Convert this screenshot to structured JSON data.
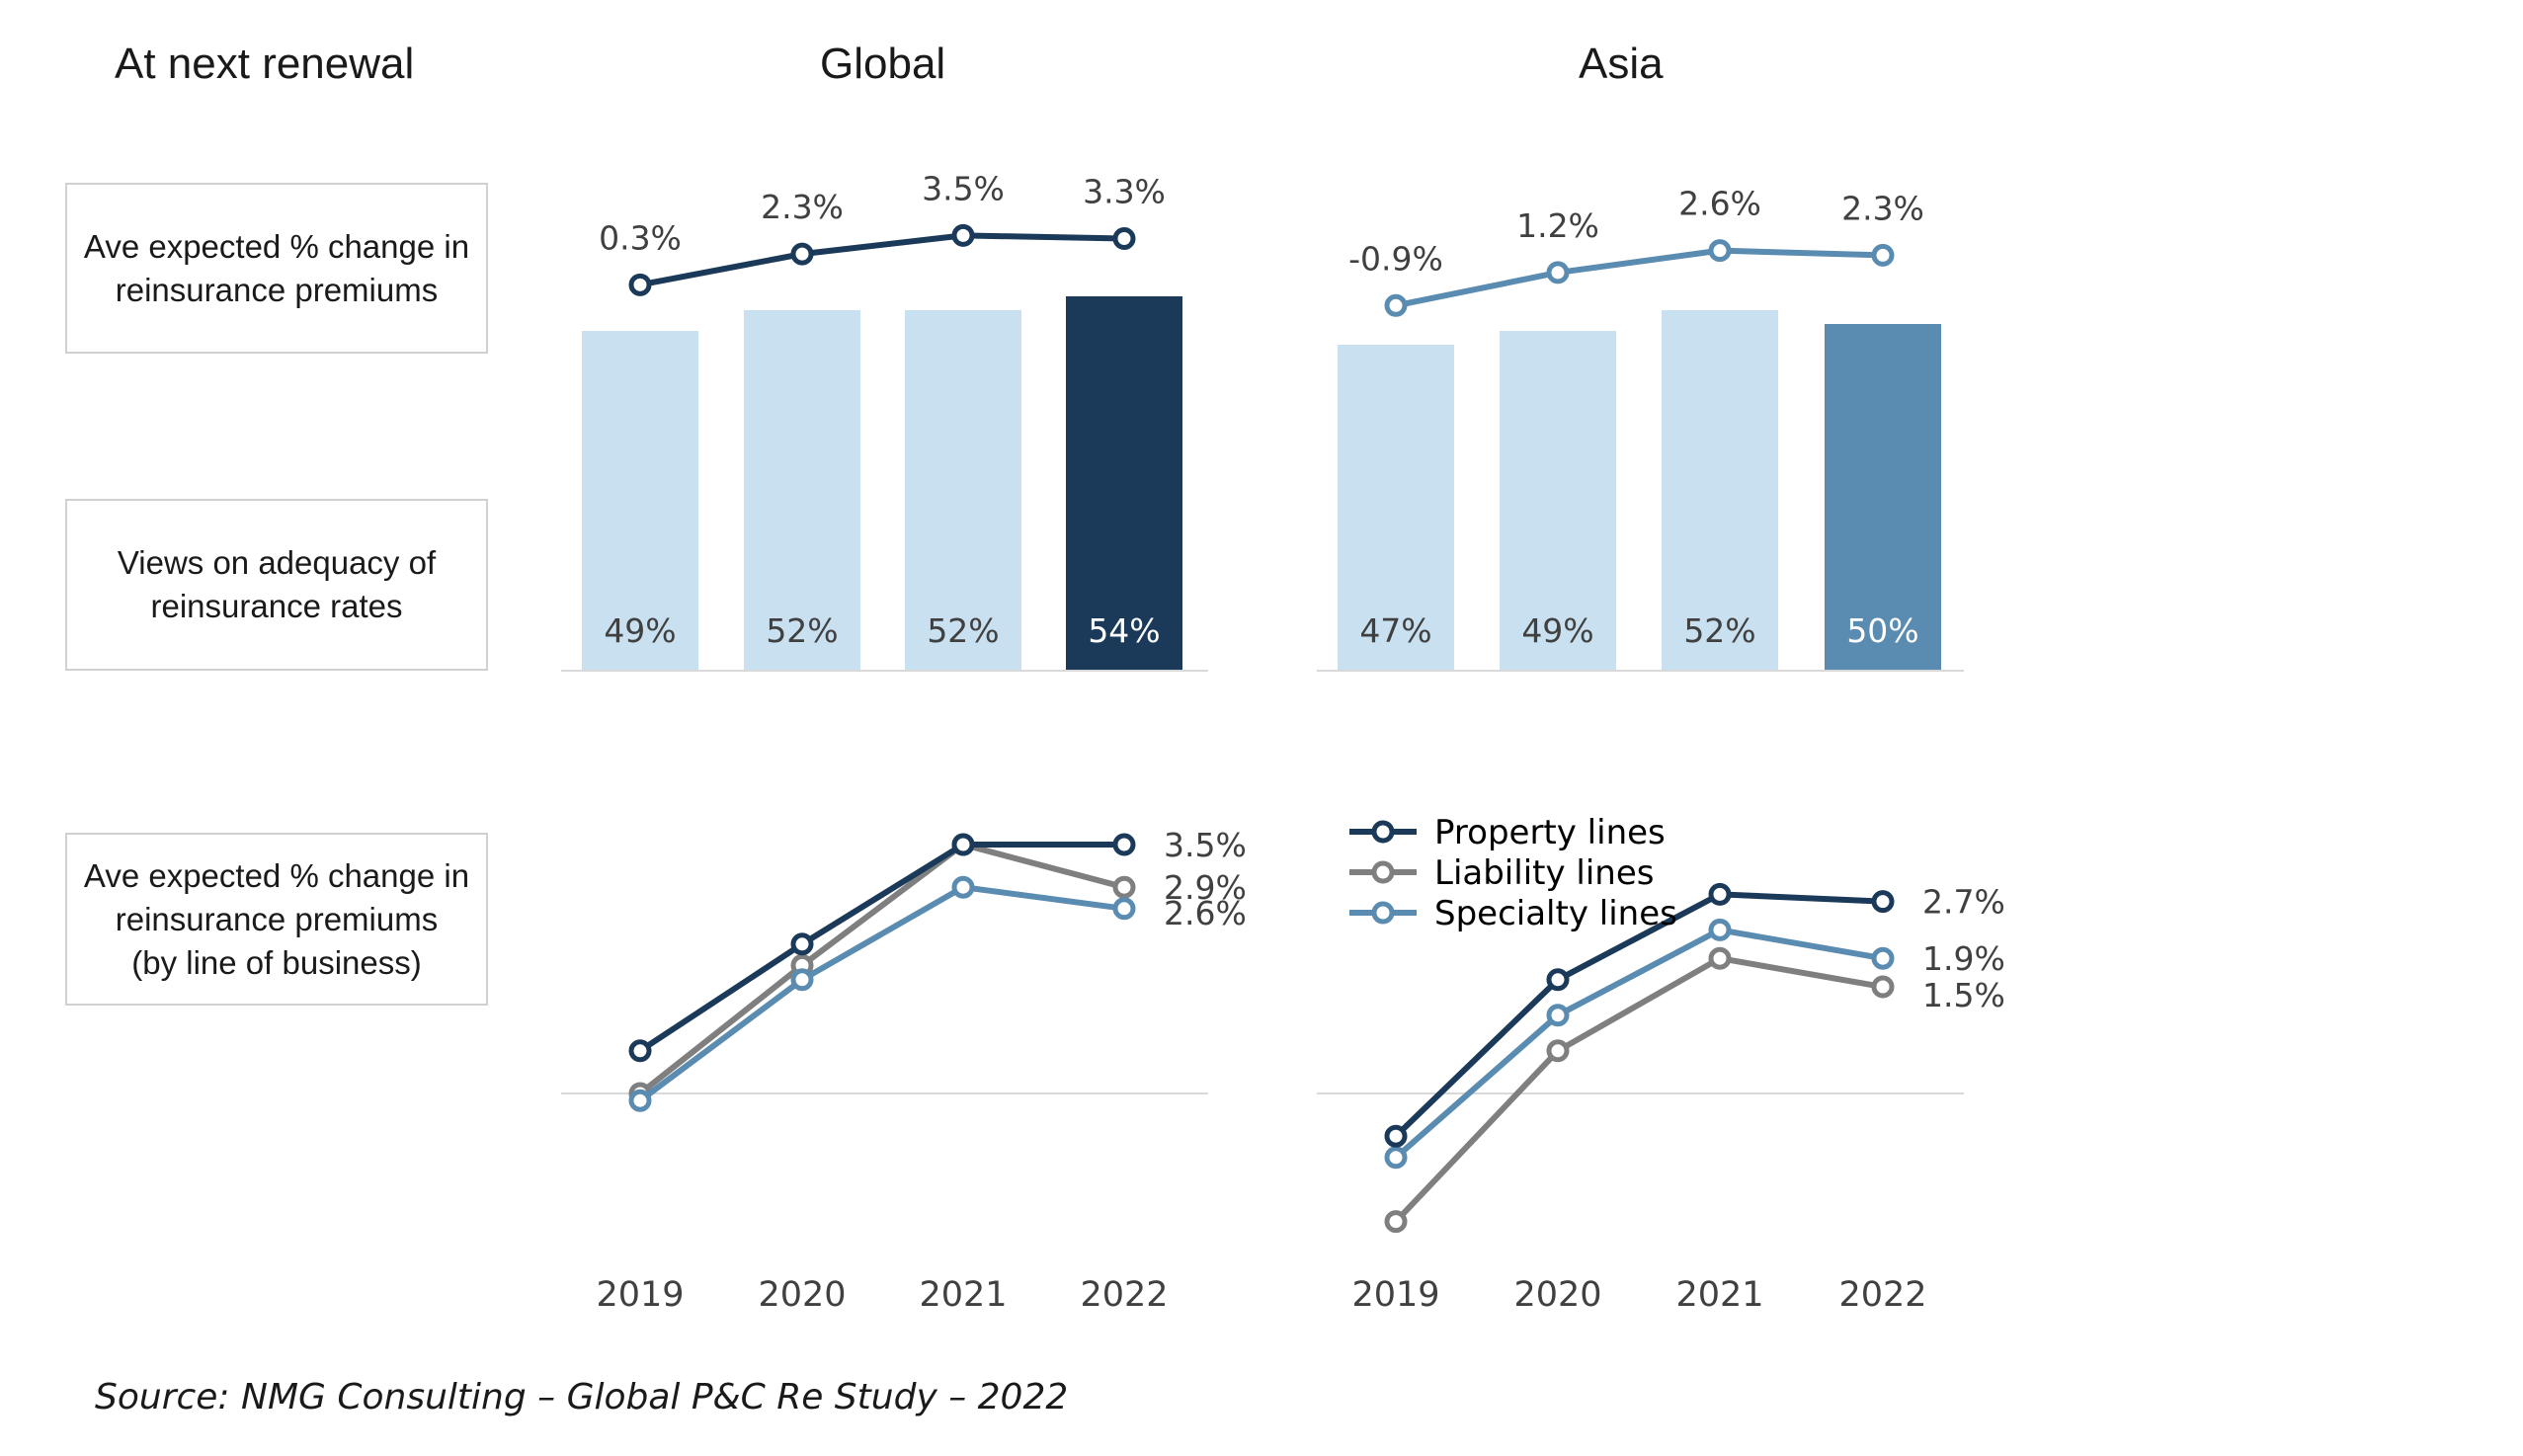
{
  "headers": {
    "left": "At next renewal",
    "global": "Global",
    "asia": "Asia"
  },
  "row_labels": {
    "premiums": [
      "Ave expected % change in",
      "reinsurance premiums"
    ],
    "adequacy": [
      "Views on adequacy of",
      "reinsurance rates"
    ],
    "by_line": [
      "Ave expected  % change in",
      "reinsurance premiums",
      "(by line of business)"
    ]
  },
  "source": "Source: NMG Consulting – Global P&C Re Study – 2022",
  "colors": {
    "navy": "#1b3a5a",
    "steel": "#5a8bb0",
    "gray": "#7f7f7f",
    "light_bar": "#c8e0ef",
    "axis": "#d9d9d9"
  },
  "chart_data": [
    {
      "id": "global-premiums",
      "type": "line",
      "panel": "Global",
      "categories": [
        "2019",
        "2020",
        "2021",
        "2022"
      ],
      "series": [
        {
          "color": "#1b3a5a",
          "values": [
            0.3,
            2.3,
            3.5,
            3.3
          ],
          "labels": [
            "0.3%",
            "2.3%",
            "3.5%",
            "3.3%"
          ]
        }
      ]
    },
    {
      "id": "asia-premiums",
      "type": "line",
      "panel": "Asia",
      "categories": [
        "2019",
        "2020",
        "2021",
        "2022"
      ],
      "series": [
        {
          "color": "#5a8bb0",
          "values": [
            -0.9,
            1.2,
            2.6,
            2.3
          ],
          "labels": [
            "-0.9%",
            "1.2%",
            "2.6%",
            "2.3%"
          ]
        }
      ]
    },
    {
      "id": "global-adequacy",
      "type": "bar",
      "panel": "Global",
      "categories": [
        "2019",
        "2020",
        "2021",
        "2022"
      ],
      "values": [
        49,
        52,
        52,
        54
      ],
      "labels": [
        "49%",
        "52%",
        "52%",
        "54%"
      ],
      "colors": [
        "#c8e0ef",
        "#c8e0ef",
        "#c8e0ef",
        "#1b3a5a"
      ]
    },
    {
      "id": "asia-adequacy",
      "type": "bar",
      "panel": "Asia",
      "categories": [
        "2019",
        "2020",
        "2021",
        "2022"
      ],
      "values": [
        47,
        49,
        52,
        50
      ],
      "labels": [
        "47%",
        "49%",
        "52%",
        "50%"
      ],
      "colors": [
        "#c8e0ef",
        "#c8e0ef",
        "#c8e0ef",
        "#5a8bb0"
      ]
    },
    {
      "id": "global-by-line",
      "type": "line",
      "panel": "Global",
      "categories": [
        "2019",
        "2020",
        "2021",
        "2022"
      ],
      "series": [
        {
          "name": "Property lines",
          "color": "#1b3a5a",
          "values": [
            0.6,
            2.1,
            3.5,
            3.5
          ],
          "end_label": "3.5%"
        },
        {
          "name": "Liability lines",
          "color": "#7f7f7f",
          "values": [
            0.0,
            1.8,
            3.5,
            2.9
          ],
          "end_label": "2.9%"
        },
        {
          "name": "Specialty lines",
          "color": "#5a8bb0",
          "values": [
            -0.1,
            1.6,
            2.9,
            2.6
          ],
          "end_label": "2.6%"
        }
      ]
    },
    {
      "id": "asia-by-line",
      "type": "line",
      "panel": "Asia",
      "categories": [
        "2019",
        "2020",
        "2021",
        "2022"
      ],
      "legend": [
        "Property lines",
        "Liability lines",
        "Specialty lines"
      ],
      "legend_position": "top-left",
      "series": [
        {
          "name": "Property lines",
          "color": "#1b3a5a",
          "values": [
            -0.6,
            1.6,
            2.8,
            2.7
          ],
          "end_label": "2.7%"
        },
        {
          "name": "Liability lines",
          "color": "#7f7f7f",
          "values": [
            -1.8,
            0.6,
            1.9,
            1.5
          ],
          "end_label": "1.5%"
        },
        {
          "name": "Specialty lines",
          "color": "#5a8bb0",
          "values": [
            -0.9,
            1.1,
            2.3,
            1.9
          ],
          "end_label": "1.9%"
        }
      ]
    }
  ],
  "year_axis": [
    "2019",
    "2020",
    "2021",
    "2022"
  ]
}
